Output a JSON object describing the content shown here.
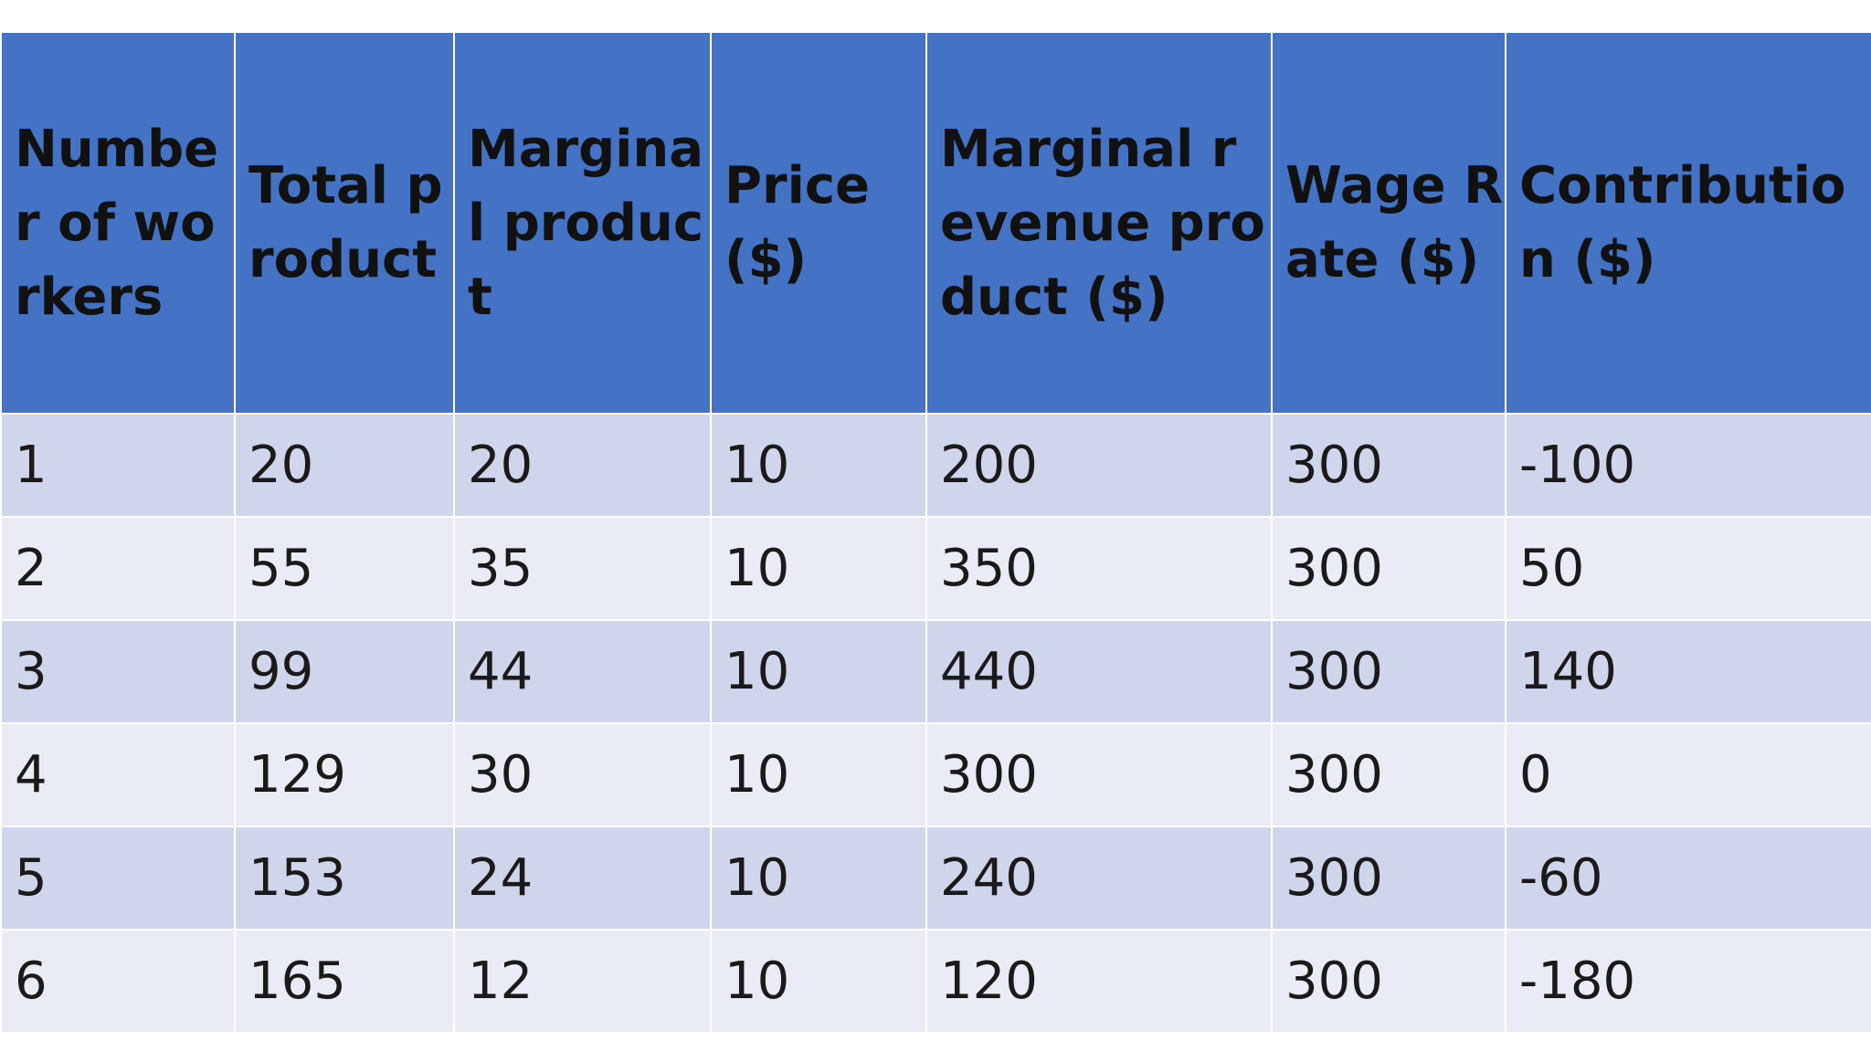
{
  "table": {
    "columns": [
      "Number of workers",
      "Total product",
      "Marginal product",
      "Price ($)",
      "Marginal revenue product ($)",
      "Wage Rate ($)",
      "Contribution ($)"
    ],
    "rows": [
      [
        "1",
        "20",
        "20",
        "10",
        "200",
        "300",
        "-100"
      ],
      [
        "2",
        "55",
        "35",
        "10",
        "350",
        "300",
        "50"
      ],
      [
        "3",
        "99",
        "44",
        "10",
        "440",
        "300",
        "140"
      ],
      [
        "4",
        "129",
        "30",
        "10",
        "300",
        "300",
        "0"
      ],
      [
        "5",
        "153",
        "24",
        "10",
        "240",
        "300",
        "-60"
      ],
      [
        "6",
        "165",
        "12",
        "10",
        "120",
        "300",
        "-180"
      ]
    ]
  },
  "colors": {
    "header_bg": "#4472c4",
    "row_odd_bg": "#cfd5ea",
    "row_even_bg": "#e9ebf5",
    "border": "#ffffff"
  }
}
